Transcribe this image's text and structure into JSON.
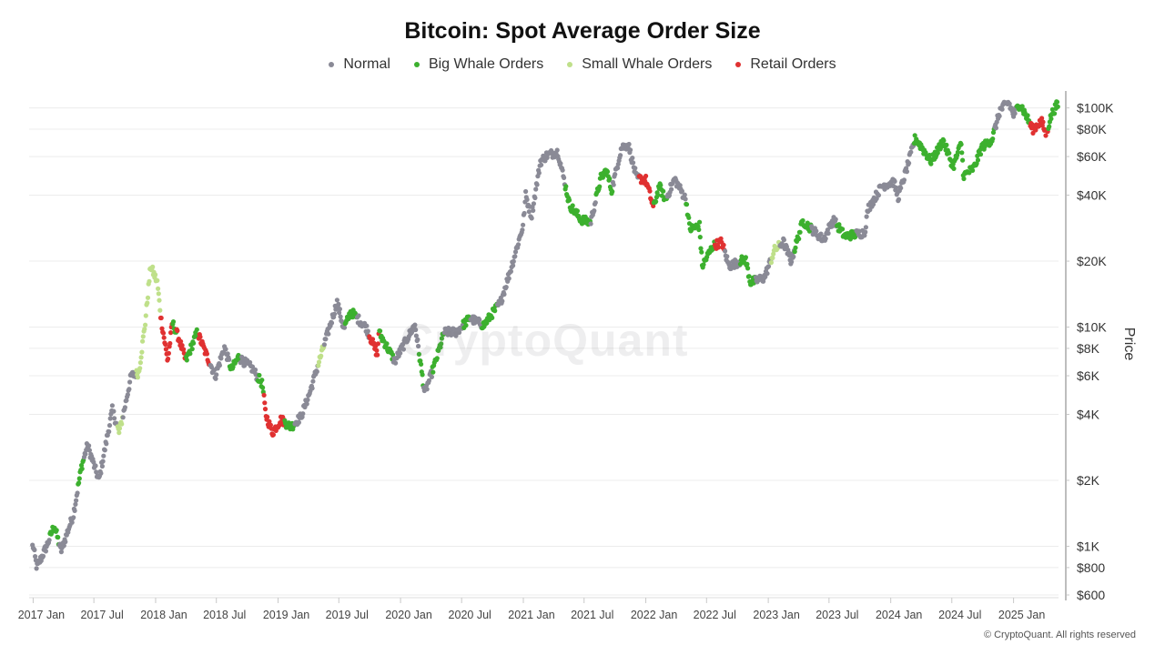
{
  "chart_data": {
    "type": "scatter",
    "title": "Bitcoin: Spot Average Order Size",
    "ylabel": "Price",
    "yscale": "log",
    "ylim": [
      600,
      115000
    ],
    "xlim": [
      "2016-12-20",
      "2025-05-15"
    ],
    "x_ticks": [
      {
        "date": "2017-01-01",
        "label": "2017 Jan"
      },
      {
        "date": "2017-07-01",
        "label": "2017 Jul"
      },
      {
        "date": "2018-01-01",
        "label": "2018 Jan"
      },
      {
        "date": "2018-07-01",
        "label": "2018 Jul"
      },
      {
        "date": "2019-01-01",
        "label": "2019 Jan"
      },
      {
        "date": "2019-07-01",
        "label": "2019 Jul"
      },
      {
        "date": "2020-01-01",
        "label": "2020 Jan"
      },
      {
        "date": "2020-07-01",
        "label": "2020 Jul"
      },
      {
        "date": "2021-01-01",
        "label": "2021 Jan"
      },
      {
        "date": "2021-07-01",
        "label": "2021 Jul"
      },
      {
        "date": "2022-01-01",
        "label": "2022 Jan"
      },
      {
        "date": "2022-07-01",
        "label": "2022 Jul"
      },
      {
        "date": "2023-01-01",
        "label": "2023 Jan"
      },
      {
        "date": "2023-07-01",
        "label": "2023 Jul"
      },
      {
        "date": "2024-01-01",
        "label": "2024 Jan"
      },
      {
        "date": "2024-07-01",
        "label": "2024 Jul"
      },
      {
        "date": "2025-01-01",
        "label": "2025 Jan"
      }
    ],
    "y_ticks": [
      {
        "value": 600,
        "label": "$600"
      },
      {
        "value": 800,
        "label": "$800"
      },
      {
        "value": 1000,
        "label": "$1K"
      },
      {
        "value": 2000,
        "label": "$2K"
      },
      {
        "value": 4000,
        "label": "$4K"
      },
      {
        "value": 6000,
        "label": "$6K"
      },
      {
        "value": 8000,
        "label": "$8K"
      },
      {
        "value": 10000,
        "label": "$10K"
      },
      {
        "value": 20000,
        "label": "$20K"
      },
      {
        "value": 40000,
        "label": "$40K"
      },
      {
        "value": 60000,
        "label": "$60K"
      },
      {
        "value": 80000,
        "label": "$80K"
      },
      {
        "value": 100000,
        "label": "$100K"
      }
    ],
    "grid": true,
    "legend_position": "top-center",
    "series": [
      {
        "name": "Normal",
        "color": "#8a8a96"
      },
      {
        "name": "Big Whale Orders",
        "color": "#3cb02e"
      },
      {
        "name": "Small Whale Orders",
        "color": "#bfe08a"
      },
      {
        "name": "Retail Orders",
        "color": "#e03131"
      }
    ],
    "price_path": [
      [
        "2017-01-01",
        1000
      ],
      [
        "2017-01-12",
        800
      ],
      [
        "2017-02-10",
        1000
      ],
      [
        "2017-03-05",
        1250
      ],
      [
        "2017-03-25",
        950
      ],
      [
        "2017-05-01",
        1400
      ],
      [
        "2017-05-25",
        2300
      ],
      [
        "2017-06-12",
        2900
      ],
      [
        "2017-07-16",
        2000
      ],
      [
        "2017-08-05",
        2900
      ],
      [
        "2017-08-25",
        4200
      ],
      [
        "2017-09-14",
        3300
      ],
      [
        "2017-10-01",
        4300
      ],
      [
        "2017-10-20",
        6000
      ],
      [
        "2017-11-12",
        6200
      ],
      [
        "2017-12-01",
        10500
      ],
      [
        "2017-12-17",
        19000
      ],
      [
        "2018-01-06",
        16000
      ],
      [
        "2018-01-17",
        11000
      ],
      [
        "2018-02-06",
        7000
      ],
      [
        "2018-02-20",
        10500
      ],
      [
        "2018-03-10",
        9000
      ],
      [
        "2018-04-01",
        7000
      ],
      [
        "2018-05-05",
        9500
      ],
      [
        "2018-06-01",
        7500
      ],
      [
        "2018-06-28",
        6000
      ],
      [
        "2018-07-25",
        8100
      ],
      [
        "2018-08-15",
        6400
      ],
      [
        "2018-09-05",
        7300
      ],
      [
        "2018-10-15",
        6500
      ],
      [
        "2018-11-15",
        5500
      ],
      [
        "2018-11-25",
        4000
      ],
      [
        "2018-12-15",
        3300
      ],
      [
        "2019-01-10",
        3800
      ],
      [
        "2019-02-08",
        3500
      ],
      [
        "2019-03-10",
        3900
      ],
      [
        "2019-04-05",
        5000
      ],
      [
        "2019-05-15",
        8000
      ],
      [
        "2019-06-26",
        13000
      ],
      [
        "2019-07-16",
        9800
      ],
      [
        "2019-08-06",
        11800
      ],
      [
        "2019-09-20",
        10000
      ],
      [
        "2019-10-24",
        7500
      ],
      [
        "2019-10-28",
        9500
      ],
      [
        "2019-12-15",
        7000
      ],
      [
        "2020-02-13",
        10300
      ],
      [
        "2020-03-13",
        5000
      ],
      [
        "2020-04-15",
        7000
      ],
      [
        "2020-05-10",
        9500
      ],
      [
        "2020-06-15",
        9500
      ],
      [
        "2020-07-25",
        11000
      ],
      [
        "2020-09-05",
        10200
      ],
      [
        "2020-10-25",
        13000
      ],
      [
        "2020-11-25",
        18500
      ],
      [
        "2020-12-31",
        29000
      ],
      [
        "2021-01-08",
        40000
      ],
      [
        "2021-01-25",
        32000
      ],
      [
        "2021-02-21",
        57000
      ],
      [
        "2021-03-13",
        61000
      ],
      [
        "2021-04-14",
        63000
      ],
      [
        "2021-05-19",
        36000
      ],
      [
        "2021-06-22",
        31000
      ],
      [
        "2021-07-20",
        30000
      ],
      [
        "2021-08-20",
        48000
      ],
      [
        "2021-09-06",
        52000
      ],
      [
        "2021-09-21",
        42000
      ],
      [
        "2021-10-20",
        66000
      ],
      [
        "2021-11-10",
        68000
      ],
      [
        "2021-12-04",
        48000
      ],
      [
        "2022-01-01",
        47000
      ],
      [
        "2022-01-24",
        35000
      ],
      [
        "2022-02-10",
        44000
      ],
      [
        "2022-03-01",
        38000
      ],
      [
        "2022-03-28",
        47500
      ],
      [
        "2022-05-01",
        38000
      ],
      [
        "2022-05-12",
        28000
      ],
      [
        "2022-06-10",
        29000
      ],
      [
        "2022-06-18",
        19000
      ],
      [
        "2022-07-20",
        23500
      ],
      [
        "2022-08-15",
        24500
      ],
      [
        "2022-09-06",
        19000
      ],
      [
        "2022-10-25",
        20500
      ],
      [
        "2022-11-09",
        16000
      ],
      [
        "2022-12-20",
        16800
      ],
      [
        "2023-01-20",
        22500
      ],
      [
        "2023-02-15",
        24500
      ],
      [
        "2023-03-10",
        20000
      ],
      [
        "2023-04-14",
        30500
      ],
      [
        "2023-06-15",
        25000
      ],
      [
        "2023-07-13",
        31000
      ],
      [
        "2023-08-17",
        26000
      ],
      [
        "2023-10-15",
        27000
      ],
      [
        "2023-10-25",
        34500
      ],
      [
        "2023-12-05",
        44000
      ],
      [
        "2024-01-10",
        46000
      ],
      [
        "2024-01-23",
        39000
      ],
      [
        "2024-02-28",
        60000
      ],
      [
        "2024-03-14",
        73000
      ],
      [
        "2024-05-01",
        57000
      ],
      [
        "2024-06-05",
        71000
      ],
      [
        "2024-07-05",
        54000
      ],
      [
        "2024-07-29",
        69000
      ],
      [
        "2024-08-05",
        49000
      ],
      [
        "2024-09-06",
        53500
      ],
      [
        "2024-09-28",
        66000
      ],
      [
        "2024-10-29",
        72000
      ],
      [
        "2024-11-22",
        98000
      ],
      [
        "2024-12-17",
        106000
      ],
      [
        "2025-01-01",
        93000
      ],
      [
        "2025-01-20",
        105000
      ],
      [
        "2025-02-27",
        80000
      ],
      [
        "2025-03-25",
        87000
      ],
      [
        "2025-04-08",
        76000
      ],
      [
        "2025-04-25",
        94000
      ],
      [
        "2025-05-10",
        103000
      ]
    ],
    "segments": [
      [
        "2016-12-30",
        "2017-02-20",
        "Normal"
      ],
      [
        "2017-02-20",
        "2017-03-20",
        "Big Whale Orders"
      ],
      [
        "2017-03-20",
        "2017-05-15",
        "Normal"
      ],
      [
        "2017-05-15",
        "2017-06-01",
        "Big Whale Orders"
      ],
      [
        "2017-06-01",
        "2017-09-10",
        "Normal"
      ],
      [
        "2017-09-10",
        "2017-09-25",
        "Small Whale Orders"
      ],
      [
        "2017-09-25",
        "2017-11-05",
        "Normal"
      ],
      [
        "2017-11-05",
        "2018-01-16",
        "Small Whale Orders"
      ],
      [
        "2018-01-16",
        "2018-02-20",
        "Retail Orders"
      ],
      [
        "2018-02-20",
        "2018-03-05",
        "Big Whale Orders"
      ],
      [
        "2018-03-05",
        "2018-04-01",
        "Retail Orders"
      ],
      [
        "2018-04-01",
        "2018-05-10",
        "Big Whale Orders"
      ],
      [
        "2018-05-10",
        "2018-06-12",
        "Retail Orders"
      ],
      [
        "2018-06-12",
        "2018-08-10",
        "Normal"
      ],
      [
        "2018-08-10",
        "2018-09-10",
        "Big Whale Orders"
      ],
      [
        "2018-09-10",
        "2018-11-01",
        "Normal"
      ],
      [
        "2018-11-01",
        "2018-11-20",
        "Big Whale Orders"
      ],
      [
        "2018-11-20",
        "2019-01-20",
        "Retail Orders"
      ],
      [
        "2019-01-20",
        "2019-02-20",
        "Big Whale Orders"
      ],
      [
        "2019-02-20",
        "2019-05-01",
        "Normal"
      ],
      [
        "2019-05-01",
        "2019-05-18",
        "Small Whale Orders"
      ],
      [
        "2019-05-18",
        "2019-07-20",
        "Normal"
      ],
      [
        "2019-07-20",
        "2019-08-25",
        "Big Whale Orders"
      ],
      [
        "2019-08-25",
        "2019-09-30",
        "Normal"
      ],
      [
        "2019-09-30",
        "2019-10-30",
        "Retail Orders"
      ],
      [
        "2019-10-30",
        "2019-12-10",
        "Big Whale Orders"
      ],
      [
        "2019-12-10",
        "2020-02-25",
        "Normal"
      ],
      [
        "2020-02-25",
        "2020-03-10",
        "Big Whale Orders"
      ],
      [
        "2020-03-10",
        "2020-04-05",
        "Normal"
      ],
      [
        "2020-04-05",
        "2020-05-10",
        "Big Whale Orders"
      ],
      [
        "2020-05-10",
        "2020-07-05",
        "Normal"
      ],
      [
        "2020-07-05",
        "2020-07-28",
        "Big Whale Orders"
      ],
      [
        "2020-07-28",
        "2020-08-30",
        "Normal"
      ],
      [
        "2020-08-30",
        "2020-10-15",
        "Big Whale Orders"
      ],
      [
        "2020-10-15",
        "2021-05-05",
        "Normal"
      ],
      [
        "2021-05-05",
        "2021-07-20",
        "Big Whale Orders"
      ],
      [
        "2021-07-20",
        "2021-08-05",
        "Normal"
      ],
      [
        "2021-08-05",
        "2021-09-25",
        "Big Whale Orders"
      ],
      [
        "2021-09-25",
        "2021-12-12",
        "Normal"
      ],
      [
        "2021-12-12",
        "2022-01-25",
        "Retail Orders"
      ],
      [
        "2022-01-25",
        "2022-03-05",
        "Big Whale Orders"
      ],
      [
        "2022-03-05",
        "2022-05-01",
        "Normal"
      ],
      [
        "2022-05-01",
        "2022-06-10",
        "Big Whale Orders"
      ],
      [
        "2022-06-10",
        "2022-07-25",
        "Big Whale Orders"
      ],
      [
        "2022-07-25",
        "2022-08-25",
        "Retail Orders"
      ],
      [
        "2022-08-25",
        "2022-10-10",
        "Normal"
      ],
      [
        "2022-10-10",
        "2022-11-25",
        "Big Whale Orders"
      ],
      [
        "2022-11-25",
        "2023-01-10",
        "Normal"
      ],
      [
        "2023-01-10",
        "2023-02-05",
        "Small Whale Orders"
      ],
      [
        "2023-02-05",
        "2023-03-20",
        "Normal"
      ],
      [
        "2023-03-20",
        "2023-05-10",
        "Big Whale Orders"
      ],
      [
        "2023-05-10",
        "2023-07-25",
        "Normal"
      ],
      [
        "2023-07-25",
        "2023-09-20",
        "Big Whale Orders"
      ],
      [
        "2023-09-20",
        "2024-03-10",
        "Normal"
      ],
      [
        "2024-03-10",
        "2024-11-05",
        "Big Whale Orders"
      ],
      [
        "2024-11-05",
        "2025-01-10",
        "Normal"
      ],
      [
        "2025-01-10",
        "2025-02-20",
        "Big Whale Orders"
      ],
      [
        "2025-02-20",
        "2025-04-15",
        "Retail Orders"
      ],
      [
        "2025-04-15",
        "2025-05-14",
        "Big Whale Orders"
      ]
    ]
  },
  "watermark": "CryptoQuant",
  "copyright": "© CryptoQuant. All rights reserved"
}
